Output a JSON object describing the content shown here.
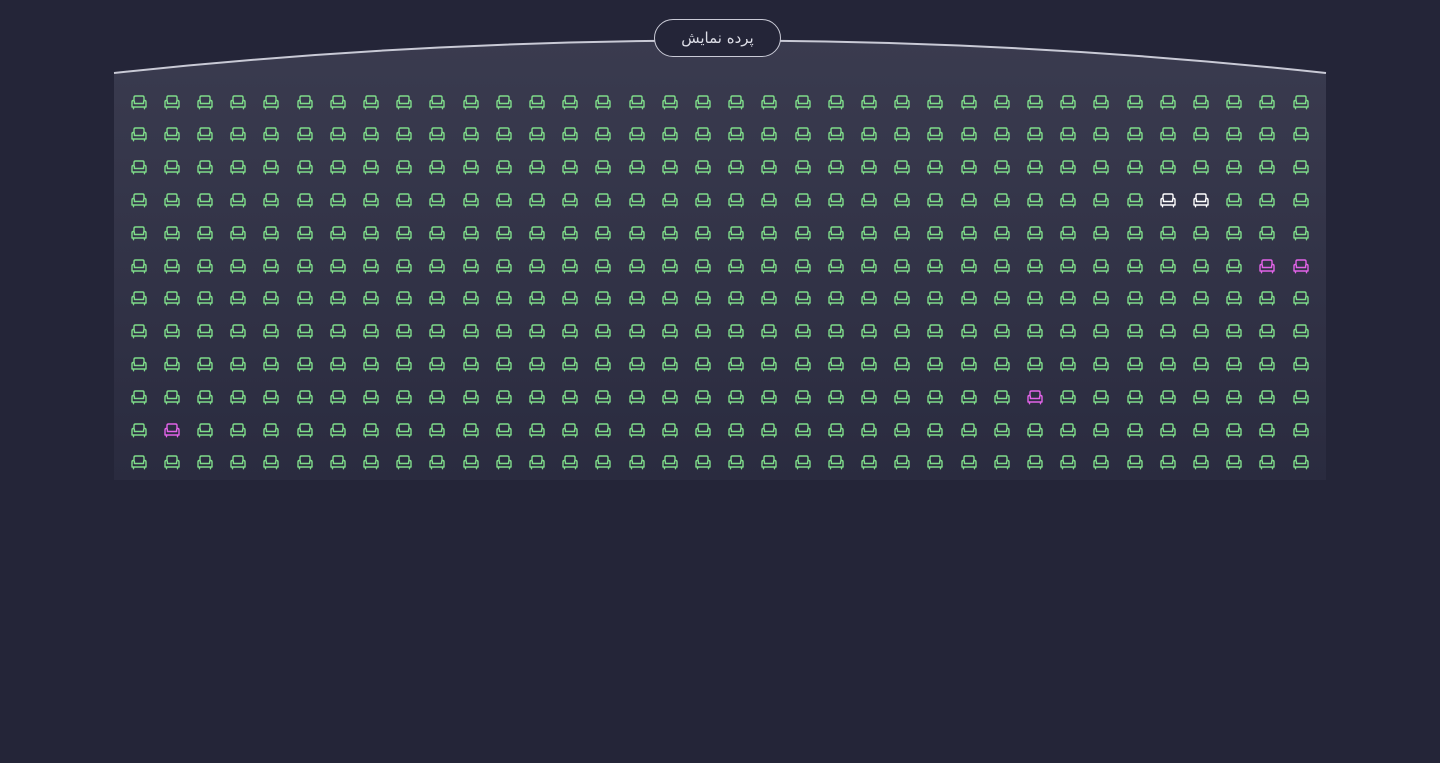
{
  "screen": {
    "label": "پرده نمایش"
  },
  "legend_colors": {
    "available": "#7fdc8a",
    "reserved": "#ffffff",
    "selected": "#e263e8"
  },
  "seat_map": {
    "rows": 12,
    "seats_per_row": 36,
    "special_seats": [
      {
        "row": 4,
        "seat": 32,
        "status": "reserved"
      },
      {
        "row": 4,
        "seat": 33,
        "status": "reserved"
      },
      {
        "row": 6,
        "seat": 35,
        "status": "selected"
      },
      {
        "row": 6,
        "seat": 36,
        "status": "selected"
      },
      {
        "row": 10,
        "seat": 28,
        "status": "selected"
      },
      {
        "row": 11,
        "seat": 2,
        "status": "selected"
      }
    ]
  }
}
